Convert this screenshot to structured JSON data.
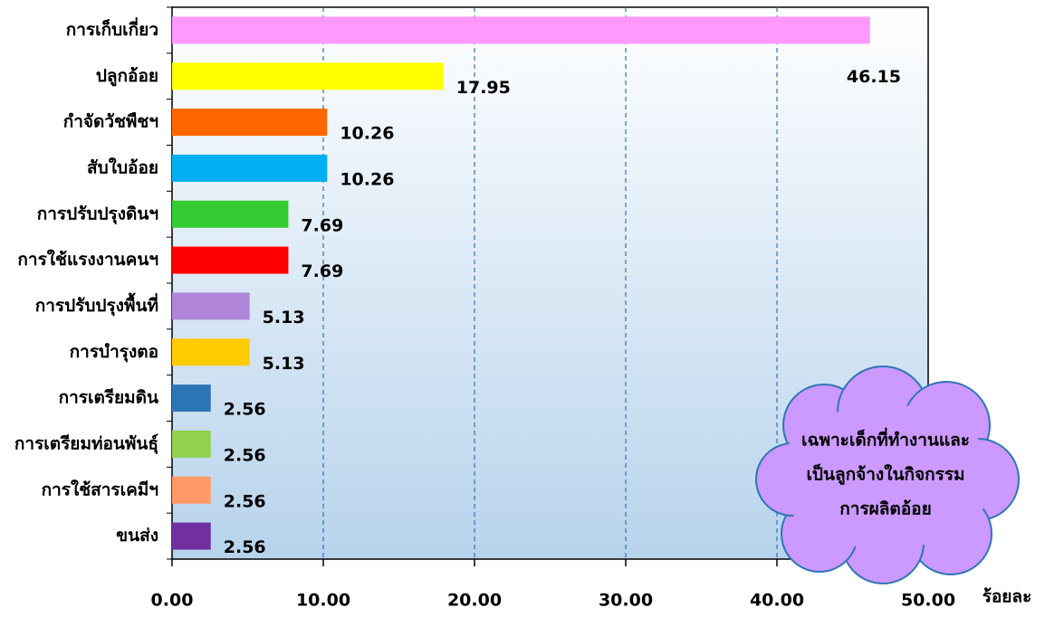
{
  "chart_data": {
    "type": "bar",
    "orientation": "horizontal",
    "categories": [
      "การเก็บเกี่ยว",
      "ปลูกอ้อย",
      "กำจัดวัชพืชฯ",
      "สับใบอ้อย",
      "การปรับปรุงดินฯ",
      "การใช้แรงงานคนฯ",
      "การปรับปรุงพื้นที่",
      "การบำรุงตอ",
      "การเตรียมดิน",
      "การเตรียมท่อนพันธุ์",
      "การใช้สารเคมีฯ",
      "ขนส่ง"
    ],
    "values": [
      46.15,
      17.95,
      10.26,
      10.26,
      7.69,
      7.69,
      5.13,
      5.13,
      2.56,
      2.56,
      2.56,
      2.56
    ],
    "colors": [
      "#ff99ff",
      "#ffff00",
      "#ff6600",
      "#00b0f0",
      "#33cc33",
      "#ff0000",
      "#b084d8",
      "#ffcc00",
      "#2e75b6",
      "#92d050",
      "#ff9966",
      "#7030a0"
    ],
    "xlim": [
      0,
      50
    ],
    "xticks": [
      {
        "value": 0,
        "label": "0.00"
      },
      {
        "value": 10,
        "label": "10.00"
      },
      {
        "value": 20,
        "label": "20.00"
      },
      {
        "value": 30,
        "label": "30.00"
      },
      {
        "value": 40,
        "label": "40.00"
      },
      {
        "value": 50,
        "label": "50.00"
      }
    ],
    "x_label": "ร้อยละ",
    "grid": true,
    "annotation": [
      "เฉพาะเด็กที่ทำงานและ",
      "เป็นลูกจ้างในกิจกรรม",
      "การผลิตอ้อย"
    ]
  }
}
